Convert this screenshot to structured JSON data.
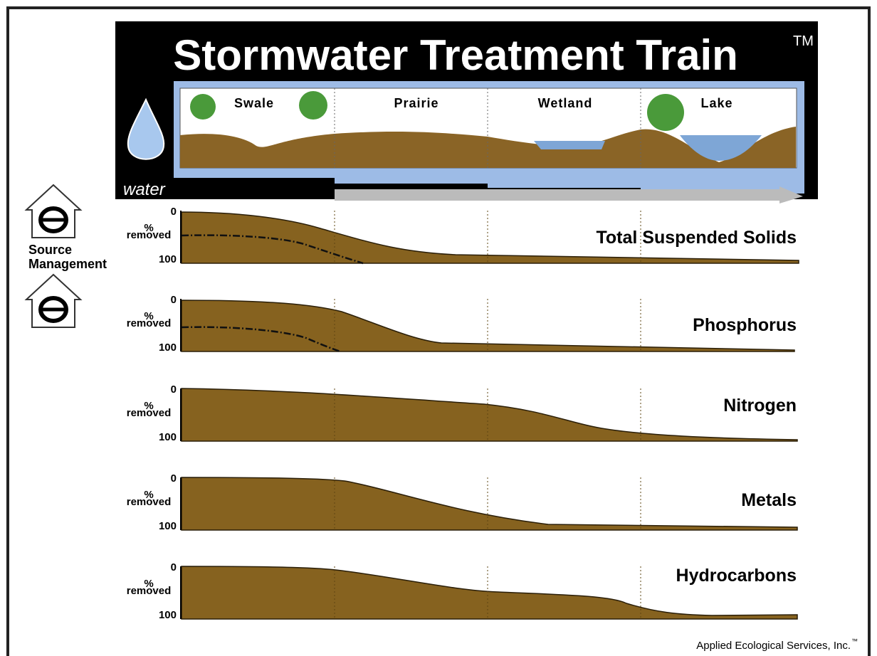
{
  "header": {
    "title": "Stormwater Treatment Train",
    "trademark": "TM",
    "water_label": "water",
    "stages": [
      "Swale",
      "Prairie",
      "Wetland",
      "Lake"
    ]
  },
  "source_management": [
    "Source",
    "Management"
  ],
  "panels": [
    {
      "name": "Total Suspended Solids",
      "top": 0,
      "axis_label": [
        "%",
        "removed"
      ],
      "bottom": 100
    },
    {
      "name": "Phosphorus",
      "top": 0,
      "axis_label": [
        "%",
        "removed"
      ],
      "bottom": 100
    },
    {
      "name": "Nitrogen",
      "top": 0,
      "axis_label": [
        "%",
        "removed"
      ],
      "bottom": 100
    },
    {
      "name": "Metals",
      "top": 0,
      "axis_label": [
        "%",
        "removed"
      ],
      "bottom": 100
    },
    {
      "name": "Hydrocarbons",
      "top": 0,
      "axis_label": [
        "%",
        "removed"
      ],
      "bottom": 100
    }
  ],
  "footer": {
    "text": "Applied Ecological Services, Inc.",
    "trademark": "™"
  }
}
